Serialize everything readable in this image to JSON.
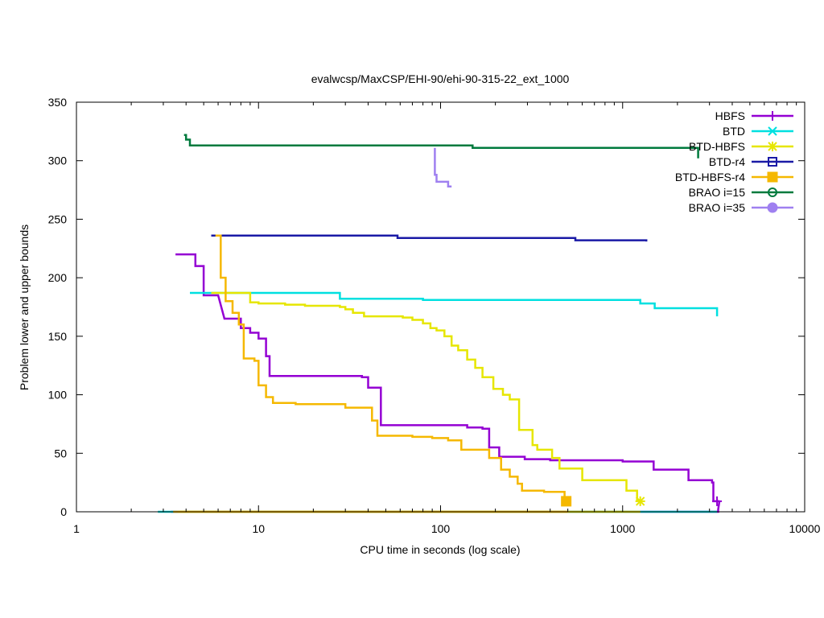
{
  "chart_data": {
    "type": "line",
    "title": "evalwcsp/MaxCSP/EHI-90/ehi-90-315-22_ext_1000",
    "xlabel": "CPU time in seconds (log scale)",
    "ylabel": "Problem lower and upper bounds",
    "xscale": "log",
    "xlim": [
      1,
      10000
    ],
    "ylim": [
      0,
      350
    ],
    "x_ticks": [
      1,
      10,
      100,
      1000,
      10000
    ],
    "x_tick_labels": [
      "1",
      "10",
      "100",
      "1000",
      "10000"
    ],
    "y_ticks": [
      0,
      50,
      100,
      150,
      200,
      250,
      300,
      350
    ],
    "y_tick_labels": [
      "0",
      "50",
      "100",
      "150",
      "200",
      "250",
      "300",
      "350"
    ],
    "legend_position": "top-right",
    "series": [
      {
        "name": "HBFS",
        "color": "#9400d3",
        "marker": "plus",
        "upper": [
          [
            3.5,
            220
          ],
          [
            4.5,
            220
          ],
          [
            4.5,
            210
          ],
          [
            5,
            210
          ],
          [
            5,
            185
          ],
          [
            6,
            185
          ],
          [
            6.5,
            165
          ],
          [
            8,
            165
          ],
          [
            8,
            157
          ],
          [
            9,
            157
          ],
          [
            9,
            153
          ],
          [
            10,
            153
          ],
          [
            10,
            148
          ],
          [
            11,
            148
          ],
          [
            11,
            133
          ],
          [
            11.5,
            133
          ],
          [
            11.5,
            116
          ],
          [
            37,
            116
          ],
          [
            37,
            115
          ],
          [
            40,
            115
          ],
          [
            40,
            106
          ],
          [
            47,
            106
          ],
          [
            47,
            74
          ],
          [
            140,
            74
          ],
          [
            140,
            72
          ],
          [
            170,
            72
          ],
          [
            170,
            71
          ],
          [
            185,
            71
          ],
          [
            185,
            55
          ],
          [
            210,
            55
          ],
          [
            210,
            47
          ],
          [
            290,
            47
          ],
          [
            290,
            45
          ],
          [
            400,
            45
          ],
          [
            400,
            44
          ],
          [
            1000,
            44
          ],
          [
            1000,
            43
          ],
          [
            1480,
            43
          ],
          [
            1480,
            36
          ],
          [
            2300,
            36
          ],
          [
            2300,
            27
          ],
          [
            3100,
            27
          ],
          [
            3100,
            25
          ],
          [
            3150,
            25
          ],
          [
            3150,
            9
          ],
          [
            3400,
            9
          ]
        ],
        "lower": [
          [
            3.3,
            0
          ],
          [
            3350,
            0
          ],
          [
            3350,
            2
          ],
          [
            3400,
            9
          ]
        ],
        "end_markers": [
          [
            3300,
            9
          ]
        ]
      },
      {
        "name": "BTD",
        "color": "#00e0e0",
        "marker": "x",
        "upper": [
          [
            4.2,
            187
          ],
          [
            28,
            187
          ],
          [
            28,
            182
          ],
          [
            80,
            182
          ],
          [
            80,
            181
          ],
          [
            1250,
            181
          ],
          [
            1250,
            178
          ],
          [
            1500,
            178
          ],
          [
            1500,
            174
          ],
          [
            3300,
            174
          ],
          [
            3300,
            167
          ]
        ],
        "lower": [
          [
            2.8,
            0
          ],
          [
            3300,
            0
          ]
        ],
        "end_markers": []
      },
      {
        "name": "BTD-HBFS",
        "color": "#e6e600",
        "marker": "star",
        "upper": [
          [
            5.5,
            187
          ],
          [
            9,
            187
          ],
          [
            9,
            179
          ],
          [
            10,
            179
          ],
          [
            10,
            178
          ],
          [
            14,
            178
          ],
          [
            14,
            177
          ],
          [
            18,
            177
          ],
          [
            18,
            176
          ],
          [
            28,
            176
          ],
          [
            28,
            175
          ],
          [
            30,
            175
          ],
          [
            30,
            173
          ],
          [
            33,
            173
          ],
          [
            33,
            170
          ],
          [
            38,
            170
          ],
          [
            38,
            167
          ],
          [
            62,
            167
          ],
          [
            62,
            166
          ],
          [
            70,
            166
          ],
          [
            70,
            164
          ],
          [
            80,
            164
          ],
          [
            80,
            161
          ],
          [
            88,
            161
          ],
          [
            88,
            157
          ],
          [
            95,
            157
          ],
          [
            95,
            155
          ],
          [
            105,
            155
          ],
          [
            105,
            150
          ],
          [
            115,
            150
          ],
          [
            115,
            142
          ],
          [
            125,
            142
          ],
          [
            125,
            138
          ],
          [
            140,
            138
          ],
          [
            140,
            130
          ],
          [
            155,
            130
          ],
          [
            155,
            123
          ],
          [
            170,
            123
          ],
          [
            170,
            115
          ],
          [
            195,
            115
          ],
          [
            195,
            105
          ],
          [
            220,
            105
          ],
          [
            220,
            100
          ],
          [
            240,
            100
          ],
          [
            240,
            96
          ],
          [
            270,
            96
          ],
          [
            270,
            70
          ],
          [
            320,
            70
          ],
          [
            320,
            57
          ],
          [
            340,
            57
          ],
          [
            340,
            53
          ],
          [
            410,
            53
          ],
          [
            410,
            46
          ],
          [
            450,
            46
          ],
          [
            450,
            37
          ],
          [
            600,
            37
          ],
          [
            600,
            27
          ],
          [
            1050,
            27
          ],
          [
            1050,
            18
          ],
          [
            1200,
            18
          ],
          [
            1200,
            10
          ],
          [
            1250,
            10
          ]
        ],
        "lower": [
          [
            3.6,
            0
          ],
          [
            1250,
            0
          ]
        ],
        "end_markers": [
          [
            1250,
            9
          ]
        ]
      },
      {
        "name": "BTD-r4",
        "color": "#1a1aa6",
        "marker": "box",
        "upper": [
          [
            5.5,
            236
          ],
          [
            58,
            236
          ],
          [
            58,
            234
          ],
          [
            550,
            234
          ],
          [
            550,
            232
          ],
          [
            1350,
            232
          ],
          [
            1350,
            231
          ]
        ],
        "lower": [],
        "end_markers": []
      },
      {
        "name": "BTD-HBFS-r4",
        "color": "#f5b800",
        "marker": "filled-box",
        "upper": [
          [
            5.8,
            236
          ],
          [
            6.2,
            236
          ],
          [
            6.2,
            200
          ],
          [
            6.6,
            200
          ],
          [
            6.6,
            180
          ],
          [
            7.2,
            180
          ],
          [
            7.2,
            170
          ],
          [
            7.8,
            170
          ],
          [
            7.8,
            160
          ],
          [
            8.3,
            160
          ],
          [
            8.3,
            131
          ],
          [
            9.5,
            131
          ],
          [
            9.5,
            129
          ],
          [
            10,
            129
          ],
          [
            10,
            108
          ],
          [
            11,
            108
          ],
          [
            11,
            98
          ],
          [
            12,
            98
          ],
          [
            12,
            93
          ],
          [
            16,
            93
          ],
          [
            16,
            92
          ],
          [
            30,
            92
          ],
          [
            30,
            89
          ],
          [
            42,
            89
          ],
          [
            42,
            78
          ],
          [
            45,
            78
          ],
          [
            45,
            65
          ],
          [
            70,
            65
          ],
          [
            70,
            64
          ],
          [
            90,
            64
          ],
          [
            90,
            63
          ],
          [
            110,
            63
          ],
          [
            110,
            61
          ],
          [
            130,
            61
          ],
          [
            130,
            53
          ],
          [
            185,
            53
          ],
          [
            185,
            46
          ],
          [
            215,
            46
          ],
          [
            215,
            36
          ],
          [
            240,
            36
          ],
          [
            240,
            30
          ],
          [
            265,
            30
          ],
          [
            265,
            24
          ],
          [
            280,
            24
          ],
          [
            280,
            18
          ],
          [
            370,
            18
          ],
          [
            370,
            17
          ],
          [
            480,
            17
          ],
          [
            480,
            10
          ],
          [
            500,
            10
          ]
        ],
        "lower": [
          [
            3.4,
            0
          ],
          [
            500,
            0
          ]
        ],
        "end_markers": [
          [
            490,
            9
          ]
        ]
      },
      {
        "name": "BRAO i=15",
        "color": "#007a3d",
        "marker": "circle",
        "upper": [
          [
            3.9,
            322
          ],
          [
            4,
            322
          ],
          [
            4,
            318
          ],
          [
            4.2,
            318
          ],
          [
            4.2,
            313
          ],
          [
            150,
            313
          ],
          [
            150,
            311
          ],
          [
            2600,
            311
          ],
          [
            2600,
            302
          ]
        ],
        "lower": [],
        "end_markers": []
      },
      {
        "name": "BRAO i=35",
        "color": "#9f80f0",
        "marker": "filled-circle",
        "upper": [
          [
            93,
            311
          ],
          [
            93,
            288
          ],
          [
            95,
            288
          ],
          [
            95,
            282
          ],
          [
            110,
            282
          ],
          [
            110,
            278
          ],
          [
            115,
            278
          ]
        ],
        "lower": [],
        "end_markers": []
      }
    ]
  }
}
